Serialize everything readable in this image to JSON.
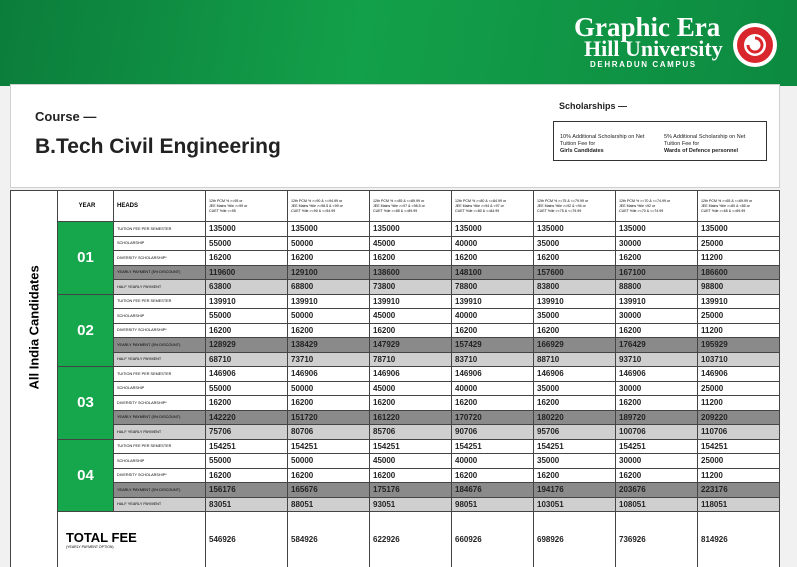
{
  "header": {
    "logo_line1": "Graphic Era",
    "logo_line2": "Hill University",
    "logo_line3": "DEHRADUN CAMPUS"
  },
  "course": {
    "label": "Course —",
    "name": "B.Tech Civil Engineering"
  },
  "scholarships": {
    "label": "Scholarships —",
    "items": [
      {
        "text": "10% Additional Scholarship on Net Tuition Fee for",
        "emphasis": "Girls Candidates"
      },
      {
        "text": "5% Additional Scholarship on Net Tuition Fee for",
        "emphasis": "Wards of Defence personnel"
      }
    ]
  },
  "table": {
    "side_label": "All India Candidates",
    "year_header": "YEAR",
    "heads_header": "HEADS",
    "criteria": [
      [
        "12th PCM % >=95 or",
        "JEE Mains %ile >=99 or",
        "CUET %ile >=95"
      ],
      [
        "12th PCM % >=90 & <=94.99 or",
        "JEE Mains %ile >=98.5 & <99 or",
        "CUET %ile >=90 & <=94.99"
      ],
      [
        "12th PCM % >=85 & <=89.99 or",
        "JEE Mains %ile >=97 & <98.5 or",
        "CUET %ile >=85 & <=89.99"
      ],
      [
        "12th PCM % >=80 & <=84.99 or",
        "JEE Mains %ile >=94 & <97 or",
        "CUET %ile >=80 & <=84.99"
      ],
      [
        "12th PCM % >=75 & <=79.99 or",
        "JEE Mains %ile >=92 & <94 or",
        "CUET %ile >=75 & <=79.99"
      ],
      [
        "12th PCM % >=70 & <=74.99 or",
        "JEE Mains %ile <92 or",
        "CUET %ile >=70 & <=74.99"
      ],
      [
        "12th PCM % >=65 & <=69.99 or",
        "JEE Mains %ile >=80 & <85 or",
        "CUET %ile >=65 & <=69.99"
      ]
    ],
    "heads": [
      "TUITION FEE PER SEMESTER",
      "SCHOLARSHIP",
      "DIVERSITY SCHOLARSHIP*",
      "YEARLY PAYMENT (5% DISCOUNT)",
      "HALF YEARLY PAYMENT"
    ],
    "years": [
      {
        "year": "01",
        "rows": [
          [
            135000,
            135000,
            135000,
            135000,
            135000,
            135000,
            135000
          ],
          [
            55000,
            50000,
            45000,
            40000,
            35000,
            30000,
            25000
          ],
          [
            16200,
            16200,
            16200,
            16200,
            16200,
            16200,
            11200
          ],
          [
            119600,
            129100,
            138600,
            148100,
            157600,
            167100,
            186600
          ],
          [
            63800,
            68800,
            73800,
            78800,
            83800,
            88800,
            98800
          ]
        ]
      },
      {
        "year": "02",
        "rows": [
          [
            139910,
            139910,
            139910,
            139910,
            139910,
            139910,
            139910
          ],
          [
            55000,
            50000,
            45000,
            40000,
            35000,
            30000,
            25000
          ],
          [
            16200,
            16200,
            16200,
            16200,
            16200,
            16200,
            11200
          ],
          [
            128929,
            138429,
            147929,
            157429,
            166929,
            176429,
            195929
          ],
          [
            68710,
            73710,
            78710,
            83710,
            88710,
            93710,
            103710
          ]
        ]
      },
      {
        "year": "03",
        "rows": [
          [
            146906,
            146906,
            146906,
            146906,
            146906,
            146906,
            146906
          ],
          [
            55000,
            50000,
            45000,
            40000,
            35000,
            30000,
            25000
          ],
          [
            16200,
            16200,
            16200,
            16200,
            16200,
            16200,
            11200
          ],
          [
            142220,
            151720,
            161220,
            170720,
            180220,
            189720,
            209220
          ],
          [
            75706,
            80706,
            85706,
            90706,
            95706,
            100706,
            110706
          ]
        ]
      },
      {
        "year": "04",
        "rows": [
          [
            154251,
            154251,
            154251,
            154251,
            154251,
            154251,
            154251
          ],
          [
            55000,
            50000,
            45000,
            40000,
            35000,
            30000,
            25000
          ],
          [
            16200,
            16200,
            16200,
            16200,
            16200,
            16200,
            11200
          ],
          [
            156176,
            165676,
            175176,
            184676,
            194176,
            203676,
            223176
          ],
          [
            83051,
            88051,
            93051,
            98051,
            103051,
            108051,
            118051
          ]
        ]
      }
    ],
    "total": {
      "label": "TOTAL FEE",
      "note": "(YEARLY PAYMENT OPTION)",
      "values": [
        546926,
        584926,
        622926,
        660926,
        698926,
        736926,
        814926
      ]
    }
  }
}
